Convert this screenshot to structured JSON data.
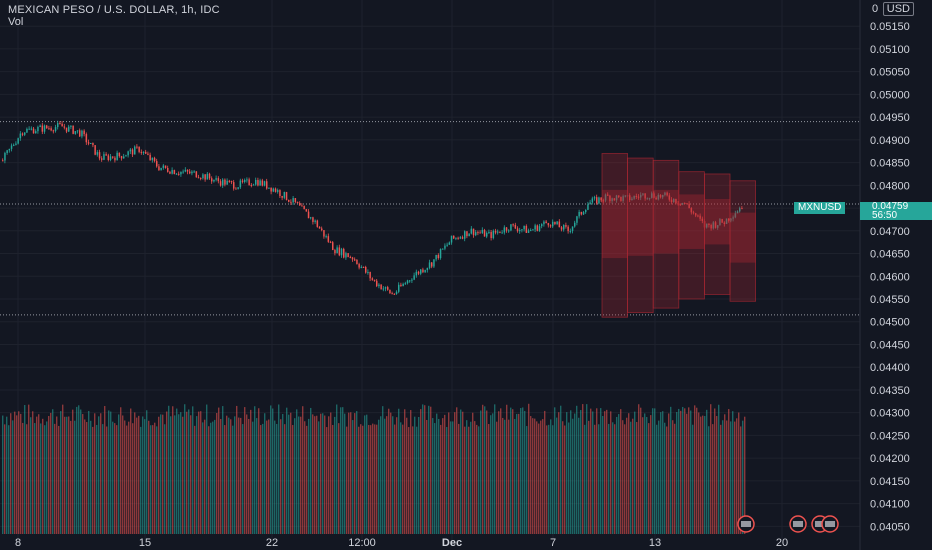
{
  "header": {
    "title": "MEXICAN PESO / U.S. DOLLAR, 1h, IDC",
    "volume_label": "Vol"
  },
  "currency_badge": "USD",
  "zero_label": "0",
  "last_price": {
    "symbol": "MXNUSD",
    "price": "0.04759",
    "countdown": "56:50"
  },
  "colors": {
    "background": "#131722",
    "up": "#26a69a",
    "down": "#ef5350",
    "grid": "#1e222d",
    "forecast_box": "#b22833"
  },
  "chart_data": {
    "type": "candlestick",
    "symbol": "MEXICAN PESO / U.S. DOLLAR",
    "interval": "1h",
    "source": "IDC",
    "y_axis": {
      "ticks": [
        "0.05150",
        "0.05100",
        "0.05050",
        "0.05000",
        "0.04950",
        "0.04900",
        "0.04850",
        "0.04800",
        "0.04750",
        "0.04700",
        "0.04650",
        "0.04600",
        "0.04550",
        "0.04500",
        "0.04450",
        "0.04400",
        "0.04350",
        "0.04300",
        "0.04250",
        "0.04200",
        "0.04150",
        "0.04100",
        "0.04050"
      ],
      "range": [
        0.0402,
        0.0519
      ]
    },
    "x_axis": {
      "ticks": [
        "8",
        "15",
        "22",
        "12:00",
        "Dec",
        "7",
        "13",
        "20"
      ]
    },
    "price_path": [
      {
        "t": 8,
        "p": 0.04855
      },
      {
        "t": 9,
        "p": 0.0492
      },
      {
        "t": 10,
        "p": 0.04925
      },
      {
        "t": 11,
        "p": 0.0493
      },
      {
        "t": 12,
        "p": 0.04915
      },
      {
        "t": 13,
        "p": 0.0486
      },
      {
        "t": 14,
        "p": 0.04865
      },
      {
        "t": 15,
        "p": 0.0488
      },
      {
        "t": 16,
        "p": 0.0484
      },
      {
        "t": 17,
        "p": 0.0483
      },
      {
        "t": 18,
        "p": 0.04825
      },
      {
        "t": 19,
        "p": 0.0481
      },
      {
        "t": 20,
        "p": 0.048
      },
      {
        "t": 21,
        "p": 0.0481
      },
      {
        "t": 22,
        "p": 0.0479
      },
      {
        "t": 23,
        "p": 0.0476
      },
      {
        "t": 24,
        "p": 0.0472
      },
      {
        "t": 25,
        "p": 0.0466
      },
      {
        "t": 26,
        "p": 0.0464
      },
      {
        "t": 27,
        "p": 0.0459
      },
      {
        "t": 28,
        "p": 0.0456
      },
      {
        "t": 29,
        "p": 0.046
      },
      {
        "t": 30,
        "p": 0.0463
      },
      {
        "t": 31,
        "p": 0.0468
      },
      {
        "t": 32,
        "p": 0.047
      },
      {
        "t": 33,
        "p": 0.0469
      },
      {
        "t": 34,
        "p": 0.0471
      },
      {
        "t": 35,
        "p": 0.047
      },
      {
        "t": 36,
        "p": 0.0472
      },
      {
        "t": 37,
        "p": 0.047
      },
      {
        "t": 38,
        "p": 0.0476
      },
      {
        "t": 39,
        "p": 0.04775
      },
      {
        "t": 40,
        "p": 0.0477
      },
      {
        "t": 41,
        "p": 0.0478
      },
      {
        "t": 42,
        "p": 0.04775
      },
      {
        "t": 43,
        "p": 0.0476
      },
      {
        "t": 44,
        "p": 0.0471
      },
      {
        "t": 45,
        "p": 0.0472
      },
      {
        "t": 46,
        "p": 0.04759
      }
    ],
    "forecast_boxes": [
      {
        "low": 0.0451,
        "high": 0.0487,
        "mid_low": 0.0464,
        "mid_high": 0.0479
      },
      {
        "low": 0.0452,
        "high": 0.0486,
        "mid_low": 0.04645,
        "mid_high": 0.048
      },
      {
        "low": 0.0453,
        "high": 0.04855,
        "mid_low": 0.0465,
        "mid_high": 0.0479
      },
      {
        "low": 0.0455,
        "high": 0.0483,
        "mid_low": 0.0466,
        "mid_high": 0.0478
      },
      {
        "low": 0.0456,
        "high": 0.04825,
        "mid_low": 0.0467,
        "mid_high": 0.0477
      },
      {
        "low": 0.04545,
        "high": 0.0481,
        "mid_low": 0.0463,
        "mid_high": 0.0474
      }
    ],
    "reference_lines": [
      0.0494,
      0.04759,
      0.04515
    ]
  }
}
